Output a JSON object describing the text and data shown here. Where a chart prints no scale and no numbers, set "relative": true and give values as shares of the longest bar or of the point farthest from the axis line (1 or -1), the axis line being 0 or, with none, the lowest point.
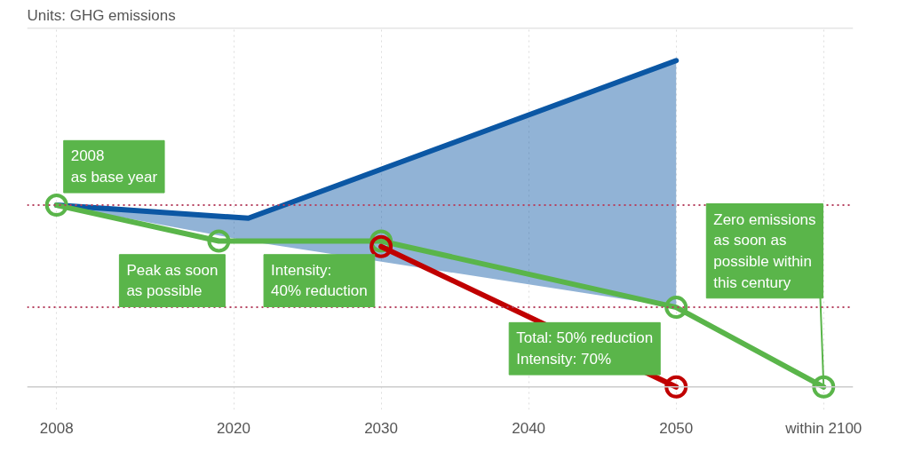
{
  "chart_data": {
    "type": "line",
    "title": "Units: GHG emissions",
    "relative": true,
    "xlim": [
      2006,
      2062
    ],
    "xticks": [
      2008,
      2020,
      2030,
      2040,
      2050,
      {
        "value": 2060,
        "label": "within 2100"
      }
    ],
    "grid": "x",
    "line_style": "solid",
    "series": [
      {
        "color": "#0b57a4",
        "marker": "none",
        "x": [
          2008,
          2021,
          2050
        ],
        "values": [
          0.557,
          0.517,
          1.0
        ],
        "lower": [
          0.557,
          0.447,
          0.244
        ],
        "upper": [
          0.557,
          0.517,
          1.0
        ]
      },
      {
        "color": "#5ab54a",
        "marker": "circle",
        "x": [
          2008,
          2019,
          2030,
          2050,
          2060
        ],
        "values": [
          0.557,
          0.447,
          0.447,
          0.244,
          0.0
        ]
      },
      {
        "color": "#c00000",
        "marker": "circle",
        "x": [
          2030,
          2050
        ],
        "values": [
          0.43,
          0.0
        ]
      }
    ],
    "ref_lines": [
      {
        "axis": "y",
        "value": 0.557,
        "color": "#b5405e",
        "line_style": "dotted"
      },
      {
        "axis": "y",
        "value": 0.244,
        "color": "#b5405e",
        "line_style": "dotted"
      }
    ],
    "annotations": [
      {
        "text": "2008\nas base year",
        "x": 2008,
        "y": 0.557
      },
      {
        "text": "Peak as soon\nas possible",
        "x": 2019,
        "y": 0.447
      },
      {
        "text": "Intensity:\n40% reduction",
        "x": 2030,
        "y": 0.447
      },
      {
        "text": "Total: 50% reduction\nIntensity: 70%",
        "x": 2050,
        "y": 0.244
      },
      {
        "text": "Zero emissions\nas soon as\npossible within\nthis century",
        "x": 2060,
        "y": 0.0
      }
    ]
  }
}
